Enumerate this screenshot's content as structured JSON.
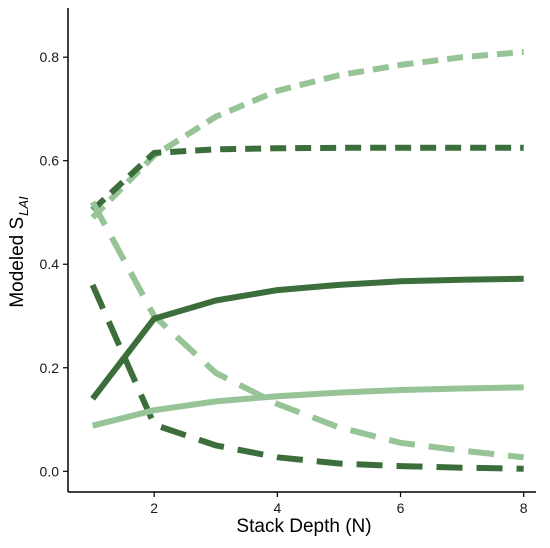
{
  "chart_data": {
    "type": "line",
    "xlabel": "Stack Depth (N)",
    "ylabel_main": "Modeled S",
    "ylabel_sub": "LAI",
    "xlim": [
      0.6,
      8.2
    ],
    "ylim": [
      -0.04,
      0.895
    ],
    "x_ticks": [
      2,
      4,
      6,
      8
    ],
    "y_ticks": [
      0.0,
      0.2,
      0.4,
      0.6,
      0.8
    ],
    "y_tick_labels": [
      "0.0",
      "0.2",
      "0.4",
      "0.6",
      "0.8"
    ],
    "grid": false,
    "legend": "none",
    "colors": {
      "dark_green": "#3c6e3c",
      "light_green": "#96c496"
    },
    "series": [
      {
        "color_key": "light_green",
        "style": "dashed-short",
        "points": [
          [
            1,
            0.49
          ],
          [
            2,
            0.61
          ],
          [
            3,
            0.685
          ],
          [
            4,
            0.735
          ],
          [
            5,
            0.765
          ],
          [
            6,
            0.785
          ],
          [
            7,
            0.8
          ],
          [
            8,
            0.81
          ]
        ]
      },
      {
        "color_key": "dark_green",
        "style": "dashed-short",
        "points": [
          [
            1,
            0.505
          ],
          [
            2,
            0.615
          ],
          [
            3,
            0.622
          ],
          [
            4,
            0.624
          ],
          [
            5,
            0.625
          ],
          [
            6,
            0.625
          ],
          [
            7,
            0.625
          ],
          [
            8,
            0.625
          ]
        ]
      },
      {
        "color_key": "light_green",
        "style": "dashed-long",
        "points": [
          [
            1,
            0.52
          ],
          [
            2,
            0.3
          ],
          [
            3,
            0.19
          ],
          [
            4,
            0.13
          ],
          [
            5,
            0.085
          ],
          [
            6,
            0.055
          ],
          [
            7,
            0.04
          ],
          [
            8,
            0.027
          ]
        ]
      },
      {
        "color_key": "dark_green",
        "style": "dashed-long",
        "points": [
          [
            1,
            0.36
          ],
          [
            2,
            0.09
          ],
          [
            3,
            0.05
          ],
          [
            4,
            0.027
          ],
          [
            5,
            0.015
          ],
          [
            6,
            0.01
          ],
          [
            7,
            0.007
          ],
          [
            8,
            0.005
          ]
        ]
      },
      {
        "color_key": "dark_green",
        "style": "solid",
        "points": [
          [
            1,
            0.14
          ],
          [
            2,
            0.295
          ],
          [
            3,
            0.33
          ],
          [
            4,
            0.35
          ],
          [
            5,
            0.36
          ],
          [
            6,
            0.367
          ],
          [
            7,
            0.37
          ],
          [
            8,
            0.372
          ]
        ]
      },
      {
        "color_key": "light_green",
        "style": "solid",
        "points": [
          [
            1,
            0.088
          ],
          [
            2,
            0.118
          ],
          [
            3,
            0.135
          ],
          [
            4,
            0.145
          ],
          [
            5,
            0.152
          ],
          [
            6,
            0.157
          ],
          [
            7,
            0.16
          ],
          [
            8,
            0.162
          ]
        ]
      }
    ]
  }
}
